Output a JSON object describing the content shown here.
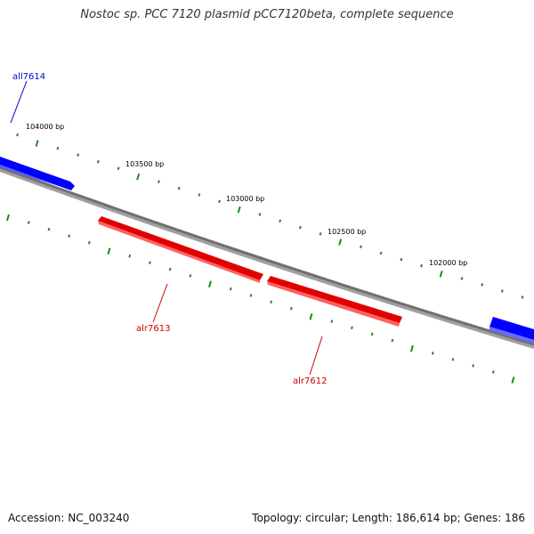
{
  "title": "Nostoc sp. PCC 7120 plasmid pCC7120beta, complete sequence",
  "footer": {
    "accession": "Accession: NC_003240",
    "summary": "Topology: circular; Length: 186,614 bp; Genes: 186"
  },
  "ticks": [
    {
      "label": "104000 bp"
    },
    {
      "label": "103500 bp"
    },
    {
      "label": "103000 bp"
    },
    {
      "label": "102500 bp"
    },
    {
      "label": "102000 bp"
    }
  ],
  "genes": [
    {
      "name": "all7614",
      "strand": "forward",
      "color": "#0000cc"
    },
    {
      "name": "alr7613",
      "strand": "reverse",
      "color": "#cc0000"
    },
    {
      "name": "alr7612",
      "strand": "reverse",
      "color": "#cc0000"
    }
  ],
  "colors": {
    "forward_gene": "#0000ff",
    "reverse_gene": "#ff0000",
    "backbone": "#808080",
    "tick": "#228b22"
  }
}
